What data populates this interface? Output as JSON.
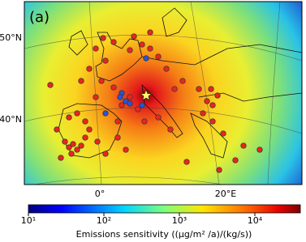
{
  "panel_label": "(a)",
  "lat_labels": [
    "50°N",
    "40°N"
  ],
  "lon_labels": [
    "0°",
    "20°E"
  ],
  "colorbar": {
    "label": "Emissions sensitivity ((μg/m² /a)/(kg/s))",
    "scale": "log",
    "lim": [
      10,
      40000
    ],
    "ticks": [
      {
        "value": 10,
        "label": "10¹"
      },
      {
        "value": 100,
        "label": "10²"
      },
      {
        "value": 1000,
        "label": "10³"
      },
      {
        "value": 10000,
        "label": "10⁴"
      }
    ]
  }
}
